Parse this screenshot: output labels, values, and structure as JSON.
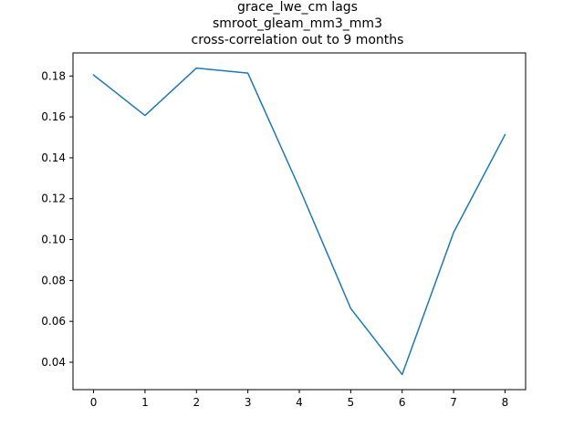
{
  "chart_data": {
    "type": "line",
    "title_lines": [
      "grace_lwe_cm lags",
      "smroot_gleam_mm3_mm3",
      "cross-correlation out to 9 months"
    ],
    "xlabel": "",
    "ylabel": "",
    "x": [
      0,
      1,
      2,
      3,
      4,
      5,
      6,
      7,
      8
    ],
    "series": [
      {
        "values": [
          0.1805,
          0.1607,
          0.1839,
          0.1814,
          0.1253,
          0.0663,
          0.034,
          0.1035,
          0.1513
        ],
        "color": "#1f77b4"
      }
    ],
    "xlim": [
      -0.4,
      8.4
    ],
    "ylim": [
      0.0266,
      0.1913
    ],
    "xticks": [
      0,
      1,
      2,
      3,
      4,
      5,
      6,
      7,
      8
    ],
    "xtick_labels": [
      "0",
      "1",
      "2",
      "3",
      "4",
      "5",
      "6",
      "7",
      "8"
    ],
    "yticks": [
      0.04,
      0.06,
      0.08,
      0.1,
      0.12,
      0.14,
      0.16,
      0.18
    ],
    "ytick_labels": [
      "0.04",
      "0.06",
      "0.08",
      "0.10",
      "0.12",
      "0.14",
      "0.16",
      "0.18"
    ],
    "grid": false,
    "legend": "none"
  }
}
